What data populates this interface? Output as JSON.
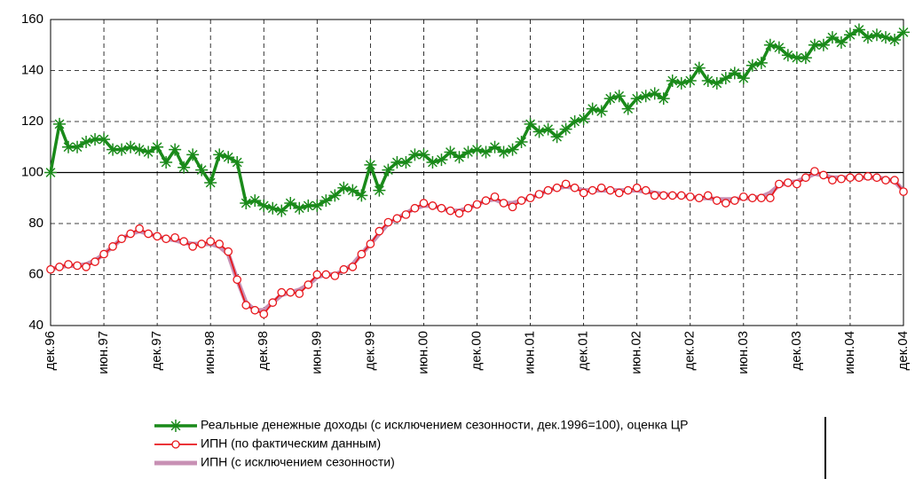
{
  "chart_data": {
    "type": "line",
    "categories": [
      "дек.96",
      null,
      null,
      null,
      null,
      null,
      "июн.97",
      null,
      null,
      null,
      null,
      null,
      "дек.97",
      null,
      null,
      null,
      null,
      null,
      "июн.98",
      null,
      null,
      null,
      null,
      null,
      "дек.98",
      null,
      null,
      null,
      null,
      null,
      "июн.99",
      null,
      null,
      null,
      null,
      null,
      "дек.99",
      null,
      null,
      null,
      null,
      null,
      "июн.00",
      null,
      null,
      null,
      null,
      null,
      "дек.00",
      null,
      null,
      null,
      null,
      null,
      "июн.01",
      null,
      null,
      null,
      null,
      null,
      "дек.01",
      null,
      null,
      null,
      null,
      null,
      "июн.02",
      null,
      null,
      null,
      null,
      null,
      "дек.02",
      null,
      null,
      null,
      null,
      null,
      "июн.03",
      null,
      null,
      null,
      null,
      null,
      "дек.03",
      null,
      null,
      null,
      null,
      null,
      "июн.04",
      null,
      null,
      null,
      null,
      null,
      "дек.04"
    ],
    "series": [
      {
        "name": "Реальные денежные доходы (с исключением сезонности, дек.1996=100), оценка ЦР",
        "color": "#1a8a1a",
        "marker": "star",
        "values": [
          100,
          119,
          110,
          110,
          112,
          113,
          113,
          109,
          109,
          110,
          109,
          108,
          110,
          104,
          109,
          102,
          107,
          101,
          96,
          107,
          106,
          104,
          88,
          89,
          87,
          86,
          85,
          88,
          86,
          87,
          87,
          89,
          91,
          94,
          93,
          91,
          103,
          93,
          101,
          104,
          104,
          107,
          107,
          104,
          105,
          108,
          106,
          108,
          109,
          108,
          110,
          108,
          109,
          112,
          119,
          116,
          117,
          114,
          117,
          120,
          121,
          125,
          124,
          129,
          130,
          125,
          129,
          130,
          131,
          129,
          136,
          135,
          136,
          141,
          136,
          135,
          137,
          139,
          137,
          142,
          143,
          150,
          149,
          146,
          145,
          145,
          150,
          150,
          153,
          151,
          154,
          156,
          153,
          154,
          153,
          152,
          155
        ]
      },
      {
        "name": "ИПН (по фактическим данным)",
        "color": "#e8161b",
        "marker": "circle",
        "values": [
          62,
          63,
          64,
          63.5,
          63,
          65,
          68,
          71,
          74,
          76,
          78,
          76,
          75,
          74,
          74.5,
          73,
          71,
          72,
          73,
          72,
          69,
          58,
          48,
          46,
          44.5,
          49,
          53,
          53,
          52.5,
          56,
          60,
          60,
          59.5,
          62,
          63,
          68,
          72,
          77,
          80.5,
          82,
          83.5,
          86,
          88,
          87,
          86,
          85,
          84,
          86,
          87.5,
          89,
          90.5,
          88,
          86.5,
          89,
          90,
          91.5,
          93,
          94,
          95.5,
          94,
          92,
          93,
          94,
          93,
          92,
          93,
          94,
          93,
          91,
          91,
          91,
          91,
          90.5,
          90,
          91,
          89,
          88,
          89,
          90.5,
          90,
          90,
          90,
          95.5,
          96,
          95.5,
          98,
          100.5,
          99,
          97,
          97.5,
          98,
          98,
          98.5,
          98,
          97,
          97,
          92.5
        ]
      },
      {
        "name": "ИПН (с исключением сезонности)",
        "color": "#c890b4",
        "marker": "none",
        "values": [
          62,
          63,
          63.5,
          63.5,
          64,
          65.5,
          68,
          71,
          74,
          76,
          77,
          76,
          75,
          74,
          73.5,
          72.5,
          72,
          72,
          72,
          71,
          68,
          58,
          49,
          46,
          46,
          49,
          52,
          53,
          54,
          56,
          59,
          60,
          60,
          61.5,
          64,
          68,
          72,
          76,
          80,
          82,
          84,
          86,
          87,
          87,
          86,
          85,
          85,
          86,
          87.5,
          89,
          89.5,
          88,
          88,
          89,
          90,
          91.5,
          93,
          94,
          94.5,
          94,
          93,
          93,
          93,
          93,
          93,
          93,
          93,
          92.5,
          92,
          91.5,
          91,
          91,
          90.5,
          90,
          90,
          89.5,
          89.5,
          89.5,
          90,
          90,
          90.5,
          92,
          95,
          96,
          96.5,
          98,
          99.5,
          99,
          98,
          98,
          98,
          98,
          98,
          98,
          97.5,
          96.5,
          93
        ]
      }
    ],
    "ylim": [
      40,
      160
    ],
    "yticks": [
      40,
      60,
      80,
      100,
      120,
      140,
      160
    ],
    "grid": true,
    "hline": 100,
    "legend": "bottom"
  }
}
